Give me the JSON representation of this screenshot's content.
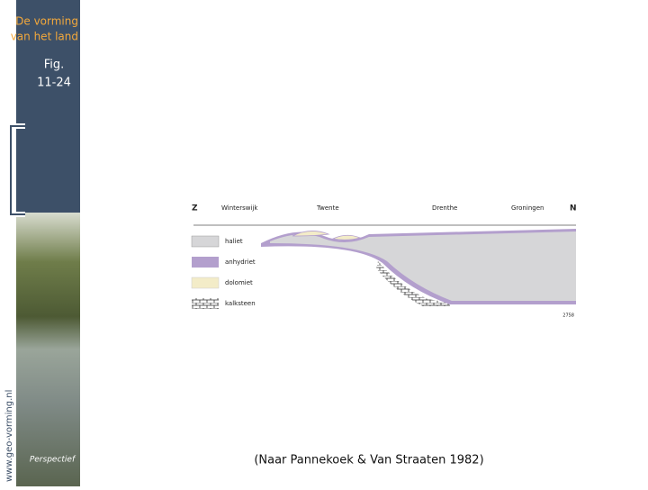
{
  "sidebar": {
    "title_lines": [
      "De vorming",
      "van het land"
    ],
    "figure_lines": [
      "Fig.",
      "11-24"
    ],
    "website": "www.geo-vorming.nl",
    "logo": "Perspectief"
  },
  "diagram": {
    "direction_left": "Z",
    "places": [
      "Winterswijk",
      "Twente",
      "Drenthe",
      "Groningen"
    ],
    "direction_right": "N",
    "legend": [
      "haliet",
      "anhydriet",
      "dolomiet",
      "kalksteen"
    ],
    "code": "2758"
  },
  "caption": "(Naar Pannekoek & Van Straaten 1982)"
}
